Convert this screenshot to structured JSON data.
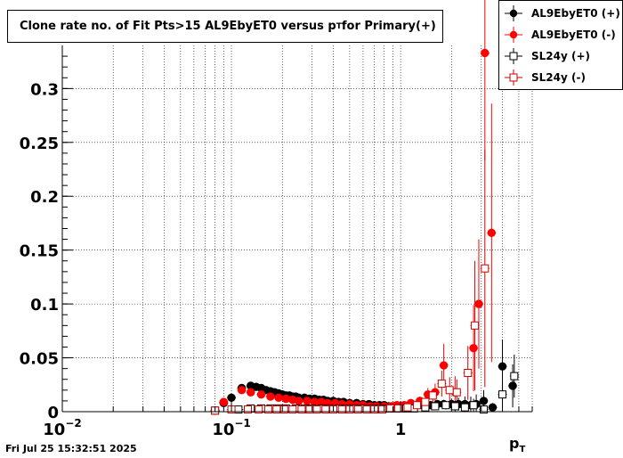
{
  "title": {
    "main": "Clone rate no. of Fit Pts>15 AL9EbyET0 versus p",
    "sub": "T",
    "suffix": " for Primary(+)"
  },
  "footer": {
    "timestamp": "Fri Jul 25 15:32:51 2025"
  },
  "chart_data": {
    "type": "scatter",
    "title": "Clone rate no. of Fit Pts>15 AL9EbyET0 versus pT for Primary(+)",
    "xlabel": "p",
    "xlabel_sub": "T",
    "x_scale": "log",
    "xlim": [
      0.01,
      6
    ],
    "ylim": [
      0,
      0.34
    ],
    "grid": true,
    "legend_position": "top-right",
    "x_ticks": [
      {
        "value": 0.01,
        "base": "10",
        "exp": "−2"
      },
      {
        "value": 0.1,
        "base": "10",
        "exp": "−1"
      },
      {
        "value": 1,
        "base": "1",
        "exp": ""
      }
    ],
    "y_ticks": [
      {
        "value": 0,
        "label": "0"
      },
      {
        "value": 0.05,
        "label": "0.05"
      },
      {
        "value": 0.1,
        "label": "0.1"
      },
      {
        "value": 0.15,
        "label": "0.15"
      },
      {
        "value": 0.2,
        "label": "0.2"
      },
      {
        "value": 0.25,
        "label": "0.25"
      },
      {
        "value": 0.3,
        "label": "0.3"
      }
    ],
    "series": [
      {
        "name": "AL9EbyET0 (+)",
        "color": "#000000",
        "marker": "filled-circle",
        "points": [
          {
            "x": 0.08,
            "y": 0.001,
            "e": 0.001
          },
          {
            "x": 0.09,
            "y": 0.008,
            "e": 0.003
          },
          {
            "x": 0.1,
            "y": 0.013,
            "e": 0.003
          },
          {
            "x": 0.115,
            "y": 0.022,
            "e": 0.002
          },
          {
            "x": 0.13,
            "y": 0.024,
            "e": 0.002
          },
          {
            "x": 0.14,
            "y": 0.023,
            "e": 0.002
          },
          {
            "x": 0.15,
            "y": 0.022,
            "e": 0.002
          },
          {
            "x": 0.16,
            "y": 0.02,
            "e": 0.002
          },
          {
            "x": 0.17,
            "y": 0.019,
            "e": 0.002
          },
          {
            "x": 0.18,
            "y": 0.018,
            "e": 0.002
          },
          {
            "x": 0.19,
            "y": 0.017,
            "e": 0.002
          },
          {
            "x": 0.2,
            "y": 0.016,
            "e": 0.002
          },
          {
            "x": 0.21,
            "y": 0.015,
            "e": 0.002
          },
          {
            "x": 0.22,
            "y": 0.015,
            "e": 0.002
          },
          {
            "x": 0.23,
            "y": 0.014,
            "e": 0.002
          },
          {
            "x": 0.24,
            "y": 0.014,
            "e": 0.002
          },
          {
            "x": 0.25,
            "y": 0.013,
            "e": 0.002
          },
          {
            "x": 0.27,
            "y": 0.013,
            "e": 0.002
          },
          {
            "x": 0.29,
            "y": 0.012,
            "e": 0.002
          },
          {
            "x": 0.31,
            "y": 0.012,
            "e": 0.002
          },
          {
            "x": 0.33,
            "y": 0.011,
            "e": 0.002
          },
          {
            "x": 0.35,
            "y": 0.011,
            "e": 0.002
          },
          {
            "x": 0.37,
            "y": 0.01,
            "e": 0.002
          },
          {
            "x": 0.4,
            "y": 0.01,
            "e": 0.002
          },
          {
            "x": 0.43,
            "y": 0.009,
            "e": 0.002
          },
          {
            "x": 0.46,
            "y": 0.009,
            "e": 0.002
          },
          {
            "x": 0.5,
            "y": 0.008,
            "e": 0.002
          },
          {
            "x": 0.55,
            "y": 0.008,
            "e": 0.002
          },
          {
            "x": 0.6,
            "y": 0.007,
            "e": 0.002
          },
          {
            "x": 0.65,
            "y": 0.007,
            "e": 0.002
          },
          {
            "x": 0.7,
            "y": 0.006,
            "e": 0.002
          },
          {
            "x": 0.75,
            "y": 0.006,
            "e": 0.002
          },
          {
            "x": 0.8,
            "y": 0.006,
            "e": 0.002
          },
          {
            "x": 0.85,
            "y": 0.005,
            "e": 0.002
          },
          {
            "x": 0.9,
            "y": 0.005,
            "e": 0.002
          },
          {
            "x": 0.95,
            "y": 0.005,
            "e": 0.002
          },
          {
            "x": 1.0,
            "y": 0.005,
            "e": 0.002
          },
          {
            "x": 1.1,
            "y": 0.005,
            "e": 0.002
          },
          {
            "x": 1.2,
            "y": 0.005,
            "e": 0.002
          },
          {
            "x": 1.35,
            "y": 0.006,
            "e": 0.003
          },
          {
            "x": 1.5,
            "y": 0.006,
            "e": 0.003
          },
          {
            "x": 1.65,
            "y": 0.007,
            "e": 0.004
          },
          {
            "x": 1.8,
            "y": 0.007,
            "e": 0.004
          },
          {
            "x": 2.0,
            "y": 0.007,
            "e": 0.005
          },
          {
            "x": 2.2,
            "y": 0.007,
            "e": 0.006
          },
          {
            "x": 2.4,
            "y": 0.007,
            "e": 0.007
          },
          {
            "x": 2.6,
            "y": 0.006,
            "e": 0.008
          },
          {
            "x": 2.8,
            "y": 0.007,
            "e": 0.009
          },
          {
            "x": 3.1,
            "y": 0.01,
            "e": 0.01
          },
          {
            "x": 3.5,
            "y": 0.004,
            "e": 0.004
          },
          {
            "x": 4.0,
            "y": 0.042,
            "e": 0.025
          },
          {
            "x": 4.6,
            "y": 0.024,
            "e": 0.02
          }
        ]
      },
      {
        "name": "AL9EbyET0 (-)",
        "color": "#ff0000",
        "marker": "filled-circle",
        "points": [
          {
            "x": 0.09,
            "y": 0.009,
            "e": 0.003
          },
          {
            "x": 0.115,
            "y": 0.02,
            "e": 0.002
          },
          {
            "x": 0.13,
            "y": 0.018,
            "e": 0.002
          },
          {
            "x": 0.15,
            "y": 0.016,
            "e": 0.002
          },
          {
            "x": 0.17,
            "y": 0.014,
            "e": 0.002
          },
          {
            "x": 0.19,
            "y": 0.013,
            "e": 0.002
          },
          {
            "x": 0.21,
            "y": 0.012,
            "e": 0.002
          },
          {
            "x": 0.23,
            "y": 0.011,
            "e": 0.002
          },
          {
            "x": 0.25,
            "y": 0.01,
            "e": 0.002
          },
          {
            "x": 0.28,
            "y": 0.01,
            "e": 0.002
          },
          {
            "x": 0.31,
            "y": 0.009,
            "e": 0.002
          },
          {
            "x": 0.34,
            "y": 0.009,
            "e": 0.002
          },
          {
            "x": 0.37,
            "y": 0.008,
            "e": 0.002
          },
          {
            "x": 0.41,
            "y": 0.008,
            "e": 0.002
          },
          {
            "x": 0.45,
            "y": 0.007,
            "e": 0.002
          },
          {
            "x": 0.5,
            "y": 0.007,
            "e": 0.002
          },
          {
            "x": 0.55,
            "y": 0.006,
            "e": 0.002
          },
          {
            "x": 0.6,
            "y": 0.006,
            "e": 0.002
          },
          {
            "x": 0.66,
            "y": 0.005,
            "e": 0.002
          },
          {
            "x": 0.72,
            "y": 0.005,
            "e": 0.002
          },
          {
            "x": 0.8,
            "y": 0.005,
            "e": 0.002
          },
          {
            "x": 0.88,
            "y": 0.005,
            "e": 0.002
          },
          {
            "x": 0.95,
            "y": 0.006,
            "e": 0.002
          },
          {
            "x": 1.05,
            "y": 0.006,
            "e": 0.003
          },
          {
            "x": 1.15,
            "y": 0.008,
            "e": 0.003
          },
          {
            "x": 1.3,
            "y": 0.01,
            "e": 0.004
          },
          {
            "x": 1.45,
            "y": 0.016,
            "e": 0.006
          },
          {
            "x": 1.6,
            "y": 0.018,
            "e": 0.008
          },
          {
            "x": 1.8,
            "y": 0.043,
            "e": 0.02
          },
          {
            "x": 2.1,
            "y": 0.018,
            "e": 0.015
          },
          {
            "x": 2.7,
            "y": 0.059,
            "e": 0.04
          },
          {
            "x": 2.9,
            "y": 0.1,
            "e": 0.06
          },
          {
            "x": 3.15,
            "y": 0.333,
            "e": 0.1
          },
          {
            "x": 3.45,
            "y": 0.166,
            "e": 0.12
          }
        ]
      },
      {
        "name": "SL24y (+)",
        "color": "#000000",
        "marker": "open-square",
        "points": [
          {
            "x": 0.08,
            "y": 0.001,
            "e": 0.001
          },
          {
            "x": 0.11,
            "y": 0.002,
            "e": 0.001
          },
          {
            "x": 0.13,
            "y": 0.003,
            "e": 0.001
          },
          {
            "x": 0.15,
            "y": 0.003,
            "e": 0.001
          },
          {
            "x": 0.17,
            "y": 0.003,
            "e": 0.001
          },
          {
            "x": 0.19,
            "y": 0.003,
            "e": 0.001
          },
          {
            "x": 0.21,
            "y": 0.003,
            "e": 0.001
          },
          {
            "x": 0.24,
            "y": 0.003,
            "e": 0.001
          },
          {
            "x": 0.27,
            "y": 0.003,
            "e": 0.001
          },
          {
            "x": 0.3,
            "y": 0.003,
            "e": 0.001
          },
          {
            "x": 0.34,
            "y": 0.003,
            "e": 0.001
          },
          {
            "x": 0.38,
            "y": 0.003,
            "e": 0.001
          },
          {
            "x": 0.43,
            "y": 0.003,
            "e": 0.001
          },
          {
            "x": 0.48,
            "y": 0.003,
            "e": 0.001
          },
          {
            "x": 0.54,
            "y": 0.003,
            "e": 0.001
          },
          {
            "x": 0.6,
            "y": 0.003,
            "e": 0.001
          },
          {
            "x": 0.68,
            "y": 0.003,
            "e": 0.001
          },
          {
            "x": 0.76,
            "y": 0.003,
            "e": 0.001
          },
          {
            "x": 0.85,
            "y": 0.003,
            "e": 0.001
          },
          {
            "x": 0.95,
            "y": 0.003,
            "e": 0.001
          },
          {
            "x": 1.08,
            "y": 0.003,
            "e": 0.002
          },
          {
            "x": 1.2,
            "y": 0.003,
            "e": 0.002
          },
          {
            "x": 1.4,
            "y": 0.004,
            "e": 0.002
          },
          {
            "x": 1.6,
            "y": 0.005,
            "e": 0.003
          },
          {
            "x": 1.85,
            "y": 0.006,
            "e": 0.004
          },
          {
            "x": 2.1,
            "y": 0.005,
            "e": 0.005
          },
          {
            "x": 2.4,
            "y": 0.004,
            "e": 0.005
          },
          {
            "x": 2.7,
            "y": 0.006,
            "e": 0.006
          },
          {
            "x": 3.1,
            "y": 0.002,
            "e": 0.003
          },
          {
            "x": 4.0,
            "y": 0.016,
            "e": 0.012
          },
          {
            "x": 4.7,
            "y": 0.033,
            "e": 0.02
          }
        ]
      },
      {
        "name": "SL24y (-)",
        "color": "#cc0000",
        "marker": "open-square",
        "points": [
          {
            "x": 0.08,
            "y": 0.001,
            "e": 0.001
          },
          {
            "x": 0.1,
            "y": 0.002,
            "e": 0.001
          },
          {
            "x": 0.125,
            "y": 0.002,
            "e": 0.001
          },
          {
            "x": 0.145,
            "y": 0.002,
            "e": 0.001
          },
          {
            "x": 0.165,
            "y": 0.002,
            "e": 0.001
          },
          {
            "x": 0.185,
            "y": 0.002,
            "e": 0.001
          },
          {
            "x": 0.205,
            "y": 0.002,
            "e": 0.001
          },
          {
            "x": 0.23,
            "y": 0.002,
            "e": 0.001
          },
          {
            "x": 0.26,
            "y": 0.002,
            "e": 0.001
          },
          {
            "x": 0.29,
            "y": 0.002,
            "e": 0.001
          },
          {
            "x": 0.32,
            "y": 0.002,
            "e": 0.001
          },
          {
            "x": 0.36,
            "y": 0.002,
            "e": 0.001
          },
          {
            "x": 0.4,
            "y": 0.002,
            "e": 0.001
          },
          {
            "x": 0.45,
            "y": 0.002,
            "e": 0.001
          },
          {
            "x": 0.5,
            "y": 0.002,
            "e": 0.001
          },
          {
            "x": 0.56,
            "y": 0.002,
            "e": 0.001
          },
          {
            "x": 0.63,
            "y": 0.002,
            "e": 0.001
          },
          {
            "x": 0.7,
            "y": 0.002,
            "e": 0.001
          },
          {
            "x": 0.78,
            "y": 0.002,
            "e": 0.001
          },
          {
            "x": 0.87,
            "y": 0.003,
            "e": 0.001
          },
          {
            "x": 0.97,
            "y": 0.003,
            "e": 0.002
          },
          {
            "x": 1.1,
            "y": 0.004,
            "e": 0.002
          },
          {
            "x": 1.25,
            "y": 0.006,
            "e": 0.003
          },
          {
            "x": 1.4,
            "y": 0.009,
            "e": 0.004
          },
          {
            "x": 1.55,
            "y": 0.015,
            "e": 0.006
          },
          {
            "x": 1.75,
            "y": 0.026,
            "e": 0.012
          },
          {
            "x": 1.95,
            "y": 0.02,
            "e": 0.012
          },
          {
            "x": 2.15,
            "y": 0.018,
            "e": 0.012
          },
          {
            "x": 2.5,
            "y": 0.036,
            "e": 0.025
          },
          {
            "x": 2.75,
            "y": 0.08,
            "e": 0.06
          },
          {
            "x": 3.15,
            "y": 0.133,
            "e": 0.11
          }
        ]
      }
    ]
  }
}
